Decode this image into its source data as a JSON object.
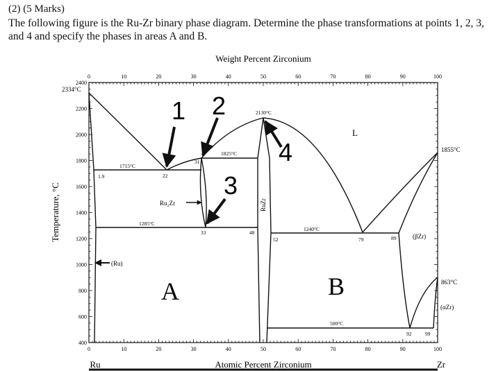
{
  "question": {
    "header": "(2) (5 Marks)",
    "text": "The following figure is the Ru-Zr binary phase diagram. Determine the phase transformations at points 1, 2, 3, and 4 and specify the phases in areas A and B."
  },
  "diagram": {
    "top_axis_title": "Weight Percent Zirconium",
    "bottom_axis_title": "Atomic Percent Zirconium",
    "y_axis_title": "Temperature, °C",
    "left_element": "Ru",
    "right_element": "Zr",
    "top_ticks": [
      "0",
      "10",
      "20",
      "30",
      "40",
      "50",
      "60",
      "70",
      "80",
      "90",
      "100"
    ],
    "bottom_ticks": [
      "0",
      "10",
      "20",
      "30",
      "40",
      "50",
      "60",
      "70",
      "80",
      "90",
      "100"
    ],
    "y_ticks": [
      "2400",
      "2200",
      "2000",
      "1800",
      "1600",
      "1400",
      "1200",
      "1000",
      "800",
      "600",
      "400"
    ],
    "labels": {
      "ru_melt": "2334°C",
      "t_1715": "1715°C",
      "t_1825": "1825°C",
      "t_2130": "2130°C",
      "t_1285": "1285°C",
      "t_1240": "1240°C",
      "t_500": "500°C",
      "t_1855": "1855°C",
      "t_863": "863°C",
      "c_1_9": "1.9",
      "c_22": "22",
      "c_31": "31",
      "c_33": "33",
      "c_48": "48",
      "c_52": "52",
      "c_79": "79",
      "c_89": "89",
      "c_92": "92",
      "c_99": "99",
      "liquid": "L",
      "ru_phase": "(Ru)",
      "ru2zr": "Ru₂Zr",
      "ruzr": "RuZr",
      "beta_zr": "(βZr)",
      "alpha_zr": "(αZr)",
      "area_a": "A",
      "area_b": "B",
      "point_1": "1",
      "point_2": "2",
      "point_3": "3",
      "point_4": "4"
    }
  }
}
